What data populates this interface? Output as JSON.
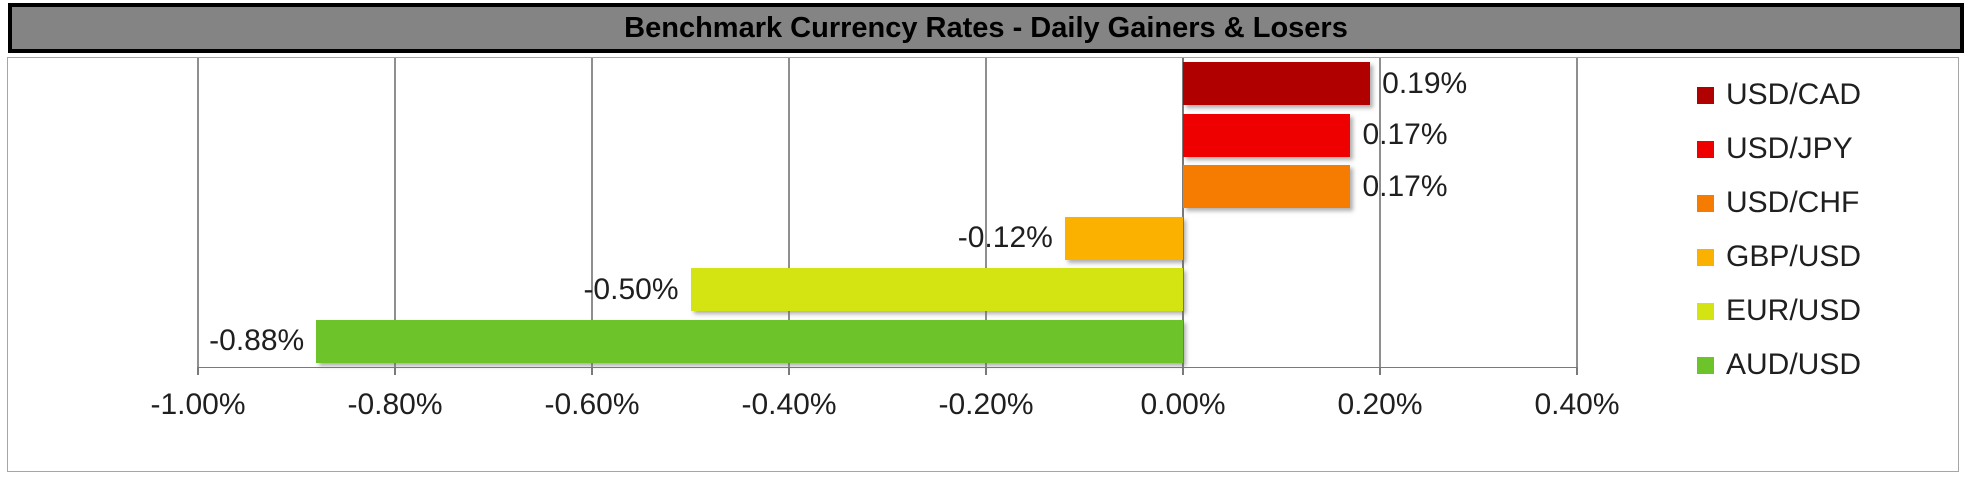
{
  "title": "Benchmark Currency Rates - Daily Gainers & Losers",
  "chart_data": {
    "type": "bar",
    "orientation": "horizontal",
    "title": "Benchmark Currency Rates - Daily Gainers & Losers",
    "series": [
      {
        "name": "USD/CAD",
        "value": 0.19,
        "label": "0.19%",
        "color": "#b00000"
      },
      {
        "name": "USD/JPY",
        "value": 0.17,
        "label": "0.17%",
        "color": "#ee0000"
      },
      {
        "name": "USD/CHF",
        "value": 0.17,
        "label": "0.17%",
        "color": "#f57c00"
      },
      {
        "name": "GBP/USD",
        "value": -0.12,
        "label": "-0.12%",
        "color": "#fbb100"
      },
      {
        "name": "EUR/USD",
        "value": -0.5,
        "label": "-0.50%",
        "color": "#d4e412"
      },
      {
        "name": "AUD/USD",
        "value": -0.88,
        "label": "-0.88%",
        "color": "#6cc42a"
      }
    ],
    "x_axis": {
      "min": -1.0,
      "max": 0.4,
      "step": 0.2,
      "tick_labels": [
        "-1.00%",
        "-0.80%",
        "-0.60%",
        "-0.40%",
        "-0.20%",
        "0.00%",
        "0.20%",
        "0.40%"
      ]
    },
    "grid": true,
    "legend_position": "right",
    "colors": {
      "title_background": "#848484",
      "title_border": "#000000",
      "gridline": "#8f8f8f",
      "frame_border": "#a6a6a6",
      "text": "#1f1f1f"
    }
  }
}
